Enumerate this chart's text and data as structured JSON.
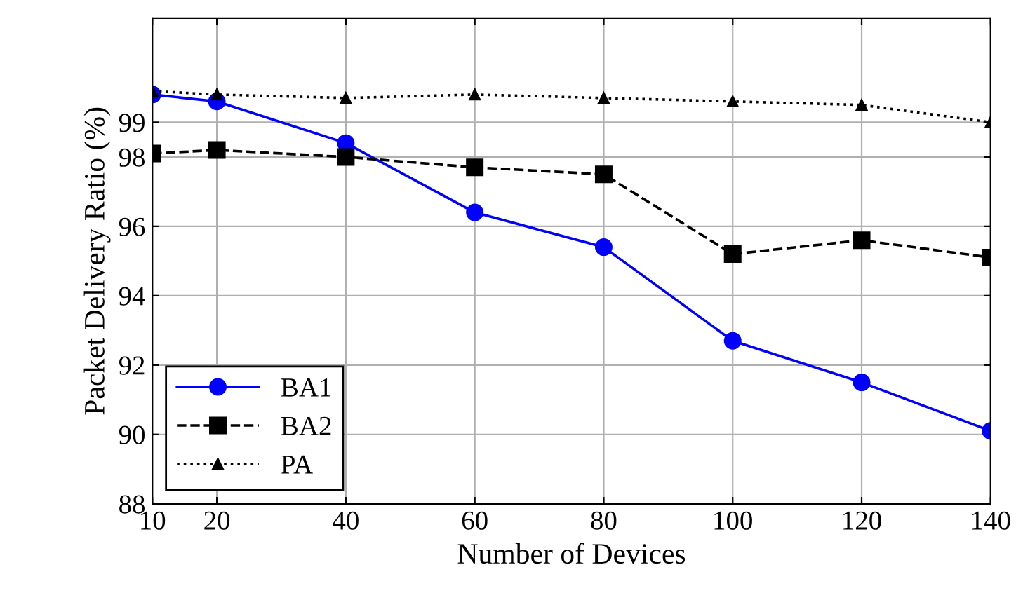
{
  "chart_data": {
    "type": "line",
    "xlabel": "Number of Devices",
    "ylabel": "Packet Delivery Ratio (%)",
    "x": [
      10,
      20,
      40,
      60,
      80,
      100,
      120,
      140
    ],
    "series": [
      {
        "name": "BA1",
        "color": "#0000ff",
        "marker": "circle",
        "line_style": "solid",
        "values": [
          99.8,
          99.6,
          98.4,
          96.4,
          95.4,
          92.7,
          91.5,
          90.1
        ]
      },
      {
        "name": "BA2",
        "color": "#000000",
        "marker": "square",
        "line_style": "dashed",
        "values": [
          98.1,
          98.2,
          98.0,
          97.7,
          97.5,
          95.2,
          95.6,
          95.1
        ]
      },
      {
        "name": "PA",
        "color": "#000000",
        "marker": "triangle",
        "line_style": "dotted",
        "values": [
          99.9,
          99.8,
          99.7,
          99.8,
          99.7,
          99.6,
          99.5,
          99.0
        ]
      }
    ],
    "xlim": [
      10,
      140
    ],
    "ylim": [
      88,
      102
    ],
    "xticks": [
      10,
      20,
      40,
      60,
      80,
      100,
      120,
      140
    ],
    "yticks": [
      88,
      90,
      92,
      94,
      96,
      98,
      99
    ],
    "grid": true,
    "legend": "bottom left"
  }
}
